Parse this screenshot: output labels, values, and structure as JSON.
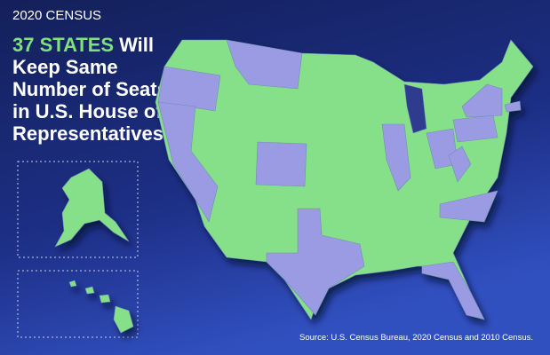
{
  "header": {
    "kicker": "2020 CENSUS",
    "highlight": "37 STATES",
    "title_lines": [
      "Will",
      "Keep Same",
      "Number of Seats",
      "in U.S. House of",
      "Representatives"
    ]
  },
  "footer": {
    "source": "Source: U.S. Census Bureau, 2020 Census and 2010 Census."
  }
}
